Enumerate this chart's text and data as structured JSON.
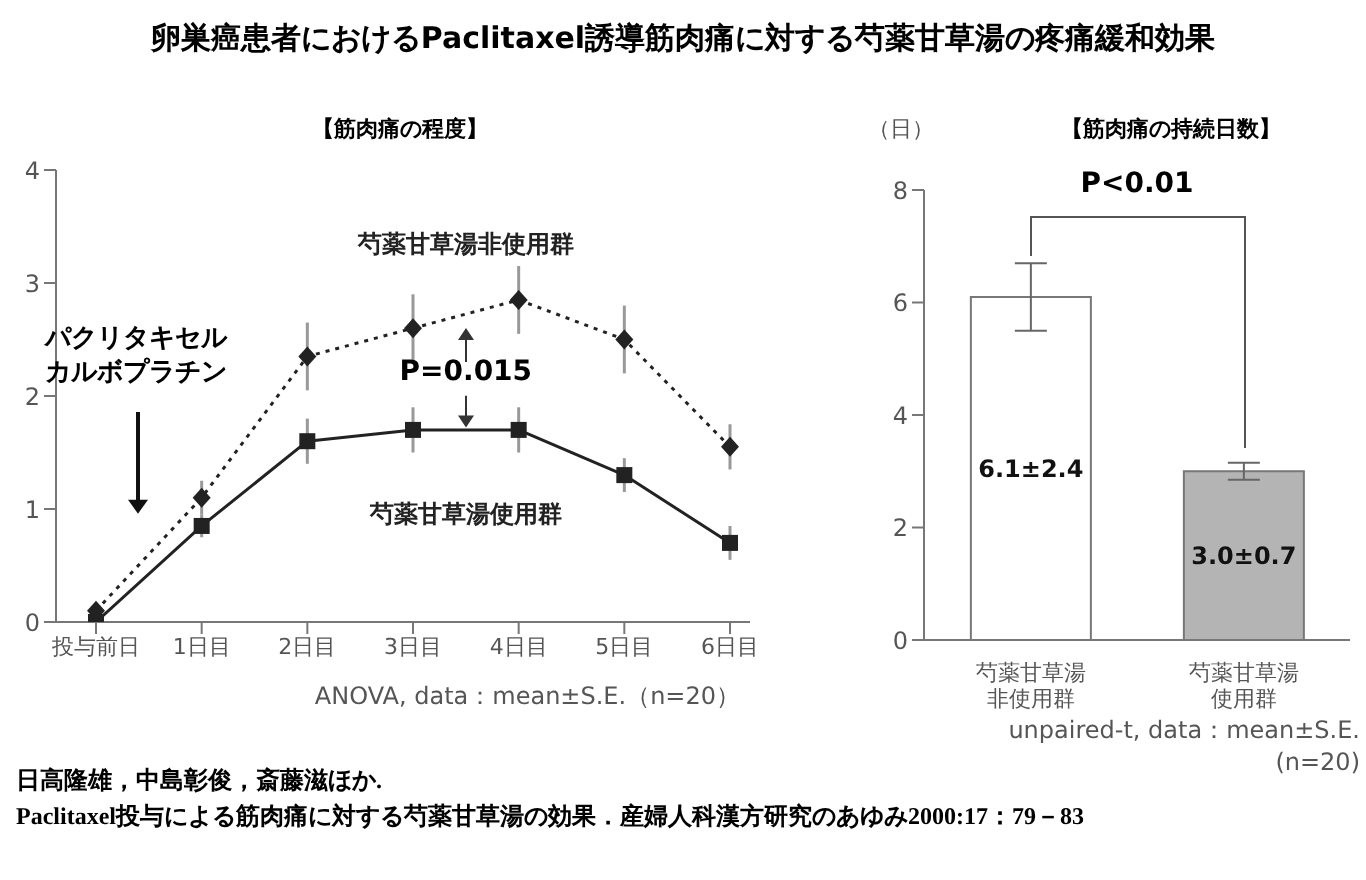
{
  "chart_data": [
    {
      "type": "line",
      "title": "卵巣癌患者におけるPaclitaxel誘導筋肉痛に対する芍薬甘草湯の疼痛緩和効果",
      "subtitle": "【筋肉痛の程度】",
      "categories": [
        "投与前日",
        "1日目",
        "2日目",
        "3日目",
        "4日目",
        "5日目",
        "6日目"
      ],
      "series": [
        {
          "name": "芍薬甘草湯非使用群",
          "color": "#222222",
          "marker": "diamond",
          "line_style": "dotted",
          "values": [
            0.1,
            1.1,
            2.35,
            2.6,
            2.85,
            2.5,
            1.55
          ],
          "errors": [
            null,
            0.15,
            0.3,
            0.3,
            0.3,
            0.3,
            0.2
          ]
        },
        {
          "name": "芍薬甘草湯使用群",
          "color": "#222222",
          "marker": "square",
          "line_style": "solid",
          "values": [
            0.0,
            0.85,
            1.6,
            1.7,
            1.7,
            1.3,
            0.7
          ],
          "errors": [
            null,
            0.1,
            0.2,
            0.2,
            0.2,
            0.15,
            0.15
          ]
        }
      ],
      "ylim": [
        0,
        4
      ],
      "yticks": [
        0,
        1,
        2,
        3,
        4
      ],
      "annotations": [
        "パクリタキセルカルボプラチン",
        "P=0.015",
        "ANOVA, data：mean±S.E.（n=20）",
        "日高隆雄，中島彰俊，斎藤滋ほか.",
        "Paclitaxel投与による筋肉痛に対する芍薬甘草湯の効果．産婦人科漢方研究のあゆみ2000:17：79－83"
      ]
    },
    {
      "type": "bar",
      "title": "【筋肉痛の持続日数】",
      "ylabel": "（日）",
      "categories": [
        "芍薬甘草湯非使用群",
        "芍薬甘草湯使用群"
      ],
      "values": [
        6.1,
        3.0
      ],
      "colors": [
        "#ffffff",
        "#b4b4b4"
      ],
      "errors": [
        0.6,
        0.15
      ],
      "value_labels": [
        "6.1±2.4",
        "3.0±0.7"
      ],
      "ylim": [
        0,
        8
      ],
      "yticks": [
        0,
        2,
        4,
        6,
        8
      ],
      "annotations": [
        "P<0.01",
        "unpaired-t, data：mean±S.E.\n(n=20)"
      ]
    }
  ]
}
